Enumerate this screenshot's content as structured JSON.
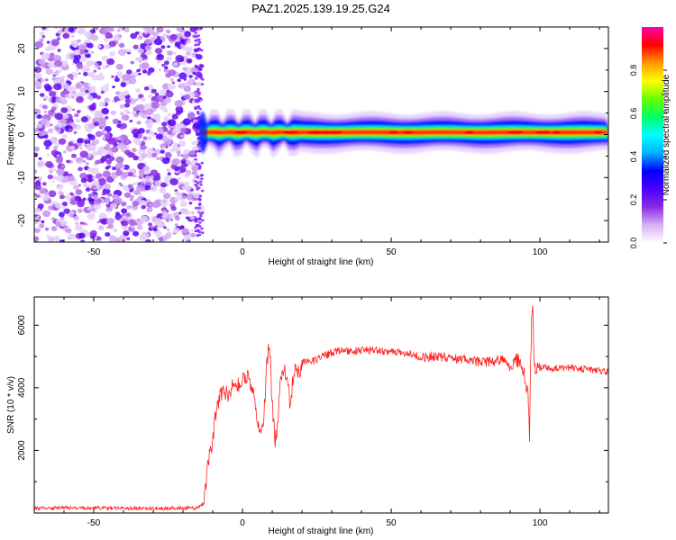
{
  "title": "PAZ1.2025.139.19.25.G24",
  "chart_data": [
    {
      "type": "heatmap",
      "title": "PAZ1.2025.139.19.25.G24",
      "xlabel": "Height of straight line (km)",
      "ylabel": "Frequency (Hz)",
      "xlim": [
        -70,
        123
      ],
      "ylim": [
        -25,
        25
      ],
      "xticks": [
        -50,
        0,
        50,
        100
      ],
      "yticks": [
        -20,
        -10,
        0,
        10,
        20
      ],
      "features": [
        {
          "name": "noise-region",
          "x_range": [
            -70,
            -14
          ],
          "f_range": [
            -25,
            25
          ]
        },
        {
          "name": "signal-line",
          "x_range": [
            -14,
            123
          ],
          "f_center": 0.5,
          "f_halfwidth": 1.5
        }
      ],
      "colorbar": {
        "label": "Normalized spectral amplitude",
        "range": [
          0.0,
          1.0
        ],
        "ticks": [
          0.0,
          0.2,
          0.4,
          0.6,
          0.8
        ],
        "tick_labels": [
          "0.0",
          "0.2",
          "0.4",
          "0.6",
          "0.8"
        ],
        "colormap": [
          "#ffffff",
          "#d7b0f5",
          "#8a2be2",
          "#4b00ff",
          "#0000ff",
          "#00b4ff",
          "#00ffff",
          "#00ff66",
          "#66ff00",
          "#ffff00",
          "#ff9900",
          "#ff0000",
          "#ff00aa"
        ]
      }
    },
    {
      "type": "line",
      "xlabel": "Height of straight line (km)",
      "ylabel": "SNR (10 * v/v)",
      "xlim": [
        -70,
        123
      ],
      "ylim": [
        0,
        6900
      ],
      "xticks": [
        -50,
        0,
        50,
        100
      ],
      "yticks": [
        2000,
        4000,
        6000
      ],
      "color": "#ff2020",
      "series": [
        {
          "name": "SNR",
          "x": [
            -70,
            -60,
            -50,
            -40,
            -30,
            -20,
            -15,
            -13,
            -12,
            -11,
            -10,
            -9,
            -8,
            -7,
            -6,
            -5,
            -4,
            -3,
            -2,
            -1,
            0,
            1,
            2,
            3,
            4,
            5,
            6,
            7,
            8,
            9,
            10,
            11,
            12,
            13,
            14,
            15,
            16,
            17,
            18,
            19,
            20,
            22,
            24,
            26,
            28,
            30,
            33,
            36,
            40,
            45,
            50,
            55,
            60,
            65,
            70,
            75,
            80,
            85,
            88,
            90,
            92,
            94,
            95,
            96,
            96.5,
            97,
            97.5,
            98,
            99,
            100,
            105,
            110,
            115,
            120,
            123
          ],
          "y": [
            150,
            160,
            150,
            160,
            150,
            160,
            150,
            300,
            1200,
            2000,
            2300,
            3100,
            3600,
            3800,
            3900,
            3750,
            3950,
            4050,
            4100,
            4150,
            4200,
            4250,
            4300,
            4100,
            3700,
            3000,
            2400,
            2800,
            4500,
            5500,
            3500,
            2200,
            3200,
            4400,
            4700,
            4300,
            3400,
            4300,
            4650,
            4450,
            4800,
            4900,
            4850,
            5000,
            5050,
            5100,
            5200,
            5150,
            5200,
            5200,
            5150,
            5100,
            5000,
            5000,
            4950,
            4900,
            4800,
            4850,
            4900,
            4600,
            4900,
            4700,
            4300,
            3800,
            2500,
            5500,
            6800,
            4600,
            4750,
            4650,
            4600,
            4650,
            4600,
            4550,
            4500
          ]
        }
      ]
    }
  ]
}
